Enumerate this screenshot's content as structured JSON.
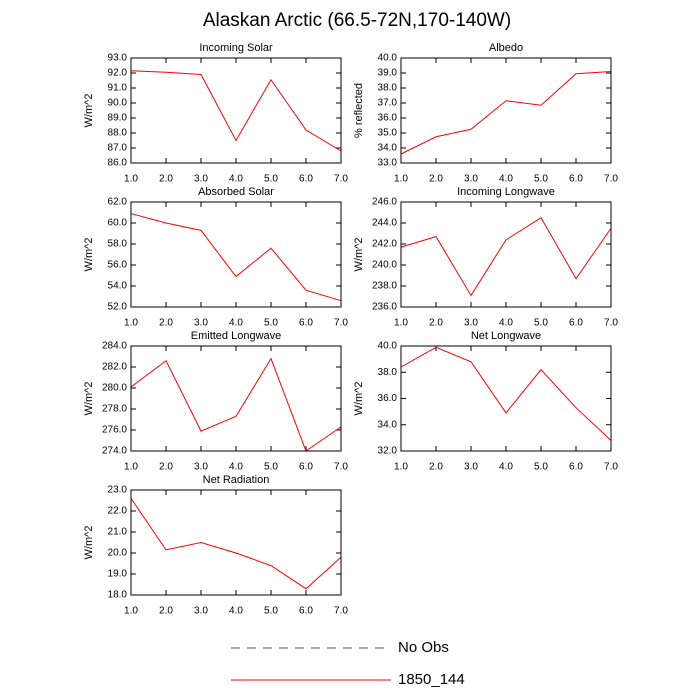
{
  "title": "Alaskan Arctic (66.5-72N,170-140W)",
  "legend": [
    {
      "name": "No Obs",
      "color": "#4444aa",
      "dashed": true
    },
    {
      "name": "1850_144",
      "color": "#ff0000",
      "dashed": false
    }
  ],
  "chart_data": [
    {
      "type": "line",
      "title": "Incoming Solar",
      "y_label": "W/m^2",
      "x": [
        1,
        2,
        3,
        4,
        5,
        6,
        7
      ],
      "xlim": [
        1,
        7
      ],
      "xticks": [
        {
          "value": 1,
          "label": "1.0"
        },
        {
          "value": 2,
          "label": "2.0"
        },
        {
          "value": 3,
          "label": "3.0"
        },
        {
          "value": 4,
          "label": "4.0"
        },
        {
          "value": 5,
          "label": "5.0"
        },
        {
          "value": 6,
          "label": "6.0"
        },
        {
          "value": 7,
          "label": "7.0"
        }
      ],
      "ylim": [
        86,
        93
      ],
      "yticks": [
        {
          "value": 86,
          "label": "86.0"
        },
        {
          "value": 87,
          "label": "87.0"
        },
        {
          "value": 88,
          "label": "88.0"
        },
        {
          "value": 89,
          "label": "89.0"
        },
        {
          "value": 90,
          "label": "90.0"
        },
        {
          "value": 91,
          "label": "91.0"
        },
        {
          "value": 92,
          "label": "92.0"
        },
        {
          "value": 93,
          "label": "93.0"
        }
      ],
      "color": "#ff0000",
      "values": [
        92.15,
        92.05,
        91.9,
        87.5,
        91.55,
        88.2,
        86.8
      ]
    },
    {
      "type": "line",
      "title": "Albedo",
      "y_label": "% reflected",
      "x": [
        1,
        2,
        3,
        4,
        5,
        6,
        7
      ],
      "xlim": [
        1,
        7
      ],
      "xticks": [
        {
          "value": 1,
          "label": "1.0"
        },
        {
          "value": 2,
          "label": "2.0"
        },
        {
          "value": 3,
          "label": "3.0"
        },
        {
          "value": 4,
          "label": "4.0"
        },
        {
          "value": 5,
          "label": "5.0"
        },
        {
          "value": 6,
          "label": "6.0"
        },
        {
          "value": 7,
          "label": "7.0"
        }
      ],
      "ylim": [
        33,
        40
      ],
      "yticks": [
        {
          "value": 33,
          "label": "33.0"
        },
        {
          "value": 34,
          "label": "34.0"
        },
        {
          "value": 35,
          "label": "35.0"
        },
        {
          "value": 36,
          "label": "36.0"
        },
        {
          "value": 37,
          "label": "37.0"
        },
        {
          "value": 38,
          "label": "38.0"
        },
        {
          "value": 39,
          "label": "39.0"
        },
        {
          "value": 40,
          "label": "40.0"
        }
      ],
      "color": "#ff0000",
      "values": [
        33.6,
        34.75,
        35.25,
        37.15,
        36.85,
        38.95,
        39.1
      ]
    },
    {
      "type": "line",
      "title": "Absorbed Solar",
      "y_label": "W/m^2",
      "x": [
        1,
        2,
        3,
        4,
        5,
        6,
        7
      ],
      "xlim": [
        1,
        7
      ],
      "xticks": [
        {
          "value": 1,
          "label": "1.0"
        },
        {
          "value": 2,
          "label": "2.0"
        },
        {
          "value": 3,
          "label": "3.0"
        },
        {
          "value": 4,
          "label": "4.0"
        },
        {
          "value": 5,
          "label": "5.0"
        },
        {
          "value": 6,
          "label": "6.0"
        },
        {
          "value": 7,
          "label": "7.0"
        }
      ],
      "ylim": [
        52,
        62
      ],
      "yticks": [
        {
          "value": 52,
          "label": "52.0"
        },
        {
          "value": 54,
          "label": "54.0"
        },
        {
          "value": 56,
          "label": "56.0"
        },
        {
          "value": 58,
          "label": "58.0"
        },
        {
          "value": 60,
          "label": "60.0"
        },
        {
          "value": 62,
          "label": "62.0"
        }
      ],
      "color": "#ff0000",
      "values": [
        60.9,
        60.0,
        59.3,
        54.9,
        57.6,
        53.6,
        52.6
      ]
    },
    {
      "type": "line",
      "title": "Incoming Longwave",
      "y_label": "W/m^2",
      "x": [
        1,
        2,
        3,
        4,
        5,
        6,
        7
      ],
      "xlim": [
        1,
        7
      ],
      "xticks": [
        {
          "value": 1,
          "label": "1.0"
        },
        {
          "value": 2,
          "label": "2.0"
        },
        {
          "value": 3,
          "label": "3.0"
        },
        {
          "value": 4,
          "label": "4.0"
        },
        {
          "value": 5,
          "label": "5.0"
        },
        {
          "value": 6,
          "label": "6.0"
        },
        {
          "value": 7,
          "label": "7.0"
        }
      ],
      "ylim": [
        236,
        246
      ],
      "yticks": [
        {
          "value": 236,
          "label": "236.0"
        },
        {
          "value": 238,
          "label": "238.0"
        },
        {
          "value": 240,
          "label": "240.0"
        },
        {
          "value": 242,
          "label": "242.0"
        },
        {
          "value": 244,
          "label": "244.0"
        },
        {
          "value": 246,
          "label": "246.0"
        }
      ],
      "color": "#ff0000",
      "values": [
        241.7,
        242.7,
        237.1,
        242.4,
        244.5,
        238.7,
        243.5
      ]
    },
    {
      "type": "line",
      "title": "Emitted Longwave",
      "y_label": "W/m^2",
      "x": [
        1,
        2,
        3,
        4,
        5,
        6,
        7
      ],
      "xlim": [
        1,
        7
      ],
      "xticks": [
        {
          "value": 1,
          "label": "1.0"
        },
        {
          "value": 2,
          "label": "2.0"
        },
        {
          "value": 3,
          "label": "3.0"
        },
        {
          "value": 4,
          "label": "4.0"
        },
        {
          "value": 5,
          "label": "5.0"
        },
        {
          "value": 6,
          "label": "6.0"
        },
        {
          "value": 7,
          "label": "7.0"
        }
      ],
      "ylim": [
        274,
        284
      ],
      "yticks": [
        {
          "value": 274,
          "label": "274.0"
        },
        {
          "value": 276,
          "label": "276.0"
        },
        {
          "value": 278,
          "label": "278.0"
        },
        {
          "value": 280,
          "label": "280.0"
        },
        {
          "value": 282,
          "label": "282.0"
        },
        {
          "value": 284,
          "label": "284.0"
        }
      ],
      "color": "#ff0000",
      "values": [
        280.1,
        282.6,
        275.9,
        277.3,
        282.8,
        274.0,
        276.3
      ]
    },
    {
      "type": "line",
      "title": "Net Longwave",
      "y_label": "W/m^2",
      "x": [
        1,
        2,
        3,
        4,
        5,
        6,
        7
      ],
      "xlim": [
        1,
        7
      ],
      "xticks": [
        {
          "value": 1,
          "label": "1.0"
        },
        {
          "value": 2,
          "label": "2.0"
        },
        {
          "value": 3,
          "label": "3.0"
        },
        {
          "value": 4,
          "label": "4.0"
        },
        {
          "value": 5,
          "label": "5.0"
        },
        {
          "value": 6,
          "label": "6.0"
        },
        {
          "value": 7,
          "label": "7.0"
        }
      ],
      "ylim": [
        32,
        40
      ],
      "yticks": [
        {
          "value": 32,
          "label": "32.0"
        },
        {
          "value": 34,
          "label": "34.0"
        },
        {
          "value": 36,
          "label": "36.0"
        },
        {
          "value": 38,
          "label": "38.0"
        },
        {
          "value": 40,
          "label": "40.0"
        }
      ],
      "color": "#ff0000",
      "values": [
        38.4,
        39.9,
        38.8,
        34.9,
        38.2,
        35.3,
        32.8
      ]
    },
    {
      "type": "line",
      "title": "Net Radiation",
      "y_label": "W/m^2",
      "x": [
        1,
        2,
        3,
        4,
        5,
        6,
        7
      ],
      "xlim": [
        1,
        7
      ],
      "xticks": [
        {
          "value": 1,
          "label": "1.0"
        },
        {
          "value": 2,
          "label": "2.0"
        },
        {
          "value": 3,
          "label": "3.0"
        },
        {
          "value": 4,
          "label": "4.0"
        },
        {
          "value": 5,
          "label": "5.0"
        },
        {
          "value": 6,
          "label": "6.0"
        },
        {
          "value": 7,
          "label": "7.0"
        }
      ],
      "ylim": [
        18,
        23
      ],
      "yticks": [
        {
          "value": 18,
          "label": "18.0"
        },
        {
          "value": 19,
          "label": "19.0"
        },
        {
          "value": 20,
          "label": "20.0"
        },
        {
          "value": 21,
          "label": "21.0"
        },
        {
          "value": 22,
          "label": "22.0"
        },
        {
          "value": 23,
          "label": "23.0"
        }
      ],
      "color": "#ff0000",
      "values": [
        22.6,
        20.15,
        20.5,
        20.0,
        19.4,
        18.3,
        19.8
      ]
    }
  ]
}
